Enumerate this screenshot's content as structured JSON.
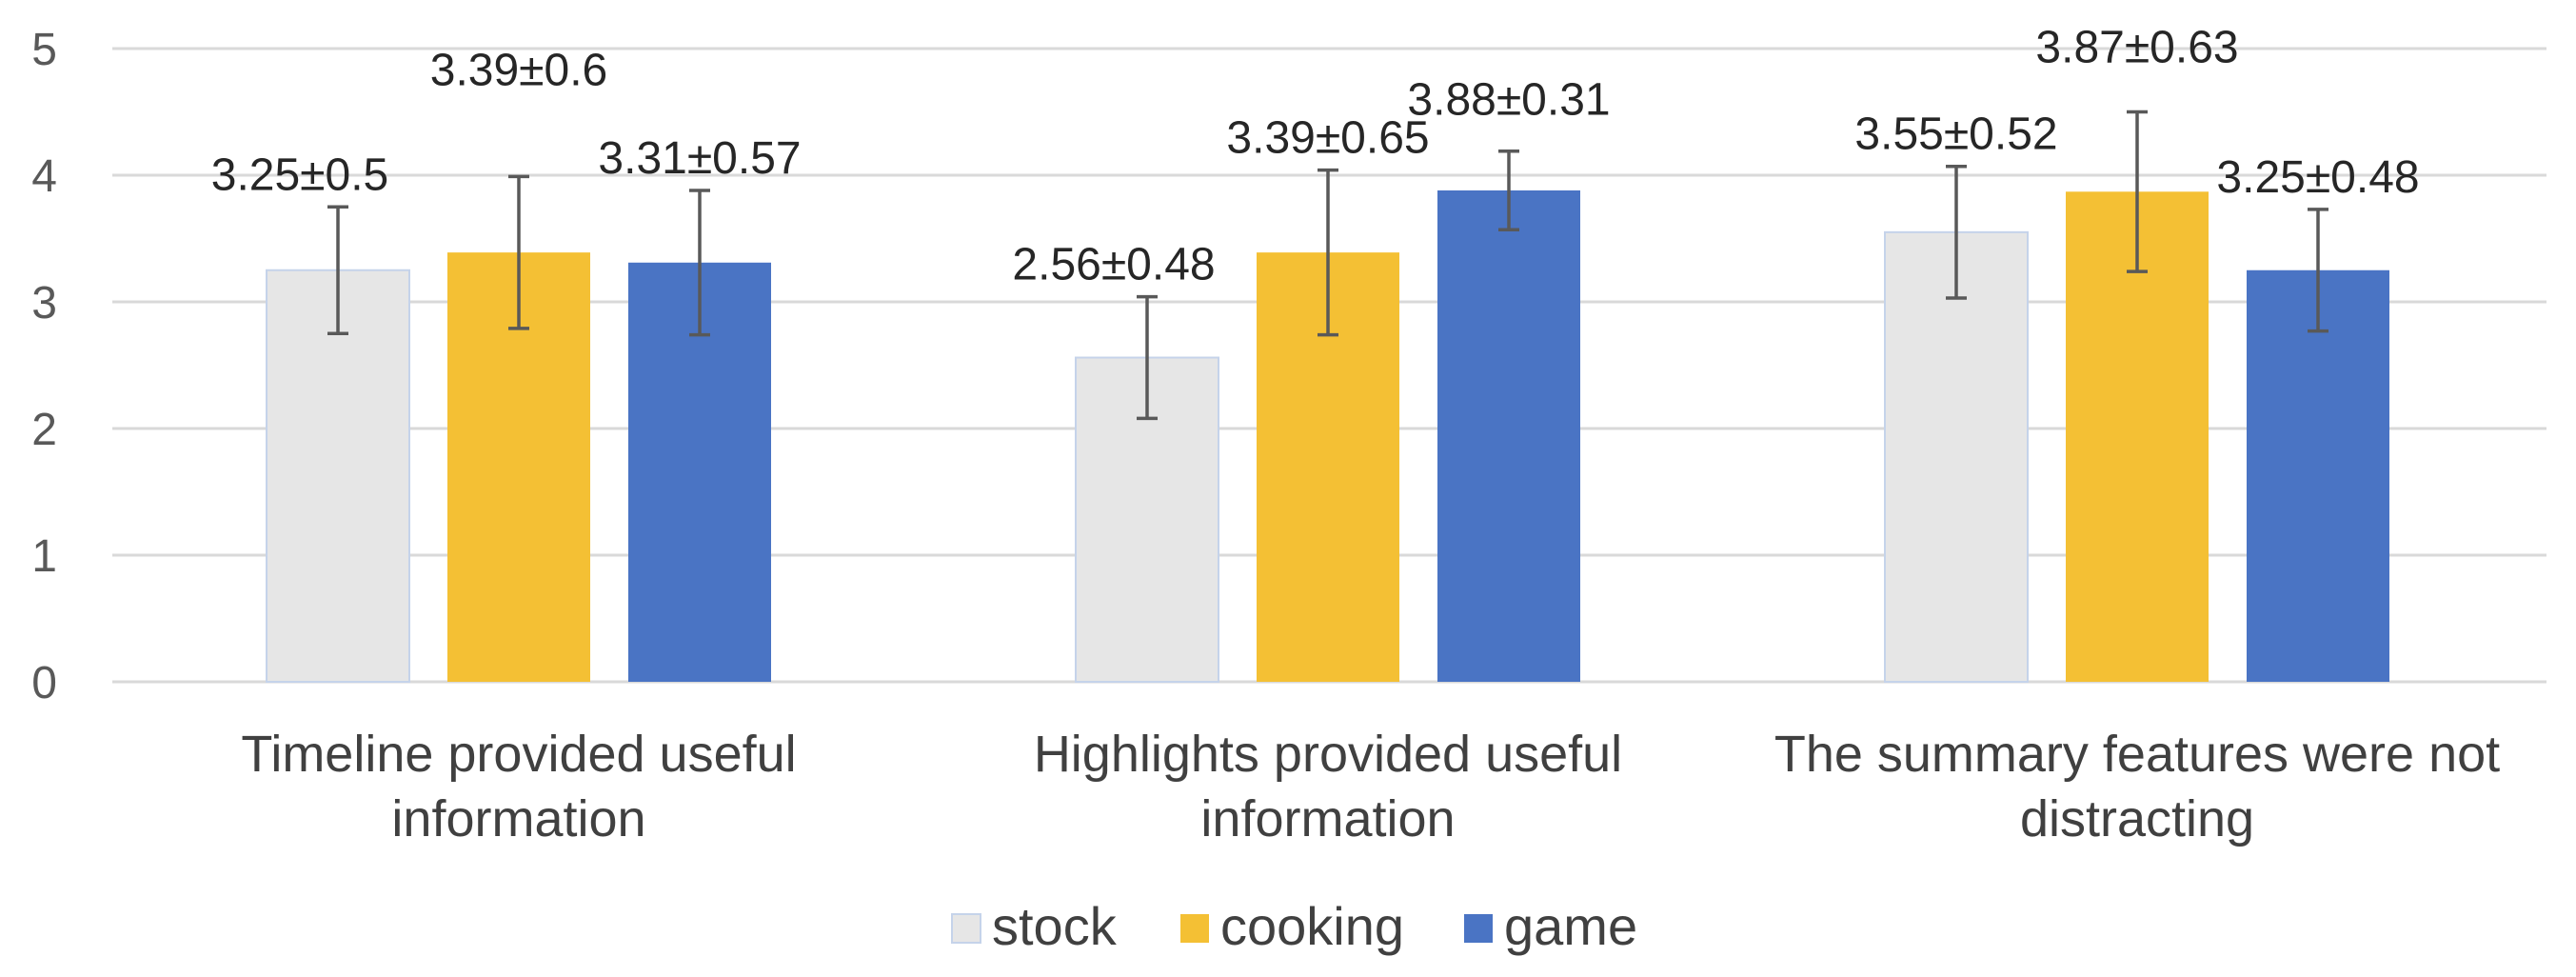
{
  "chart_data": {
    "type": "bar",
    "categories": [
      [
        "Timeline provided useful",
        "information"
      ],
      [
        "Highlights provided useful",
        "information"
      ],
      [
        "The summary features were not",
        "distracting"
      ]
    ],
    "series": [
      {
        "name": "stock",
        "color": "#e6e6e6",
        "values": [
          3.25,
          2.56,
          3.55
        ],
        "errors": [
          0.5,
          0.48,
          0.52
        ],
        "labels": [
          "3.25±0.5",
          "2.56±0.48",
          "3.55±0.52"
        ]
      },
      {
        "name": "cooking",
        "color": "#f4c034",
        "values": [
          3.39,
          3.39,
          3.87
        ],
        "errors": [
          0.6,
          0.65,
          0.63
        ],
        "labels": [
          "3.39±0.6",
          "3.39±0.65",
          "3.87±0.63"
        ]
      },
      {
        "name": "game",
        "color": "#4a74c4",
        "values": [
          3.31,
          3.88,
          3.25
        ],
        "errors": [
          0.57,
          0.31,
          0.48
        ],
        "labels": [
          "3.31±0.57",
          "3.88±0.31",
          "3.25±0.48"
        ]
      }
    ],
    "ylim": [
      0,
      5
    ],
    "yticks": [
      "0",
      "1",
      "2",
      "3",
      "4",
      "5"
    ],
    "grid": true,
    "legend": "bottom"
  }
}
